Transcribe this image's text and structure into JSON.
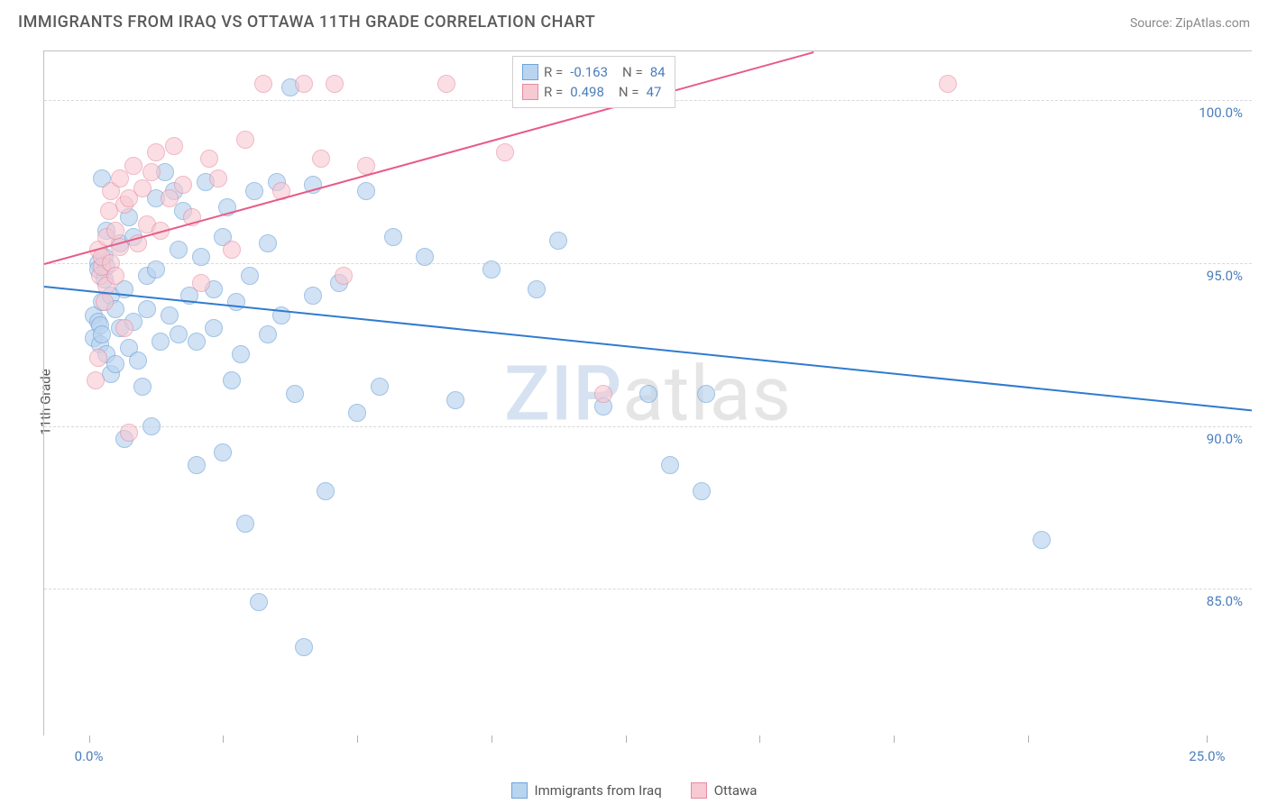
{
  "header": {
    "title": "IMMIGRANTS FROM IRAQ VS OTTAWA 11TH GRADE CORRELATION CHART",
    "source_label": "Source: ZipAtlas.com"
  },
  "watermark": {
    "part1": "ZIP",
    "part2": "atlas"
  },
  "chart": {
    "type": "scatter",
    "background_color": "#ffffff",
    "grid_color": "#d8d8d8",
    "border_color": "#c0c0c0",
    "ylabel": "11th Grade",
    "label_fontsize": 15,
    "tick_color": "#4a7ebb",
    "xlim": [
      -1.0,
      26.0
    ],
    "ylim": [
      80.5,
      101.5
    ],
    "xticks": [
      0.0,
      3.0,
      6.0,
      9.0,
      12.0,
      15.0,
      18.0,
      21.0,
      25.0
    ],
    "xtick_labels": {
      "0": "0.0%",
      "25": "25.0%"
    },
    "yticks": [
      85.0,
      90.0,
      95.0,
      100.0
    ],
    "ytick_labels": [
      "85.0%",
      "90.0%",
      "95.0%",
      "100.0%"
    ],
    "marker_radius": 10,
    "series": [
      {
        "name": "Immigrants from Iraq",
        "fill": "#b9d4ef",
        "stroke": "#6fa3d8",
        "fill_opacity": 0.65,
        "R": "-0.163",
        "N": "84",
        "trend": {
          "x1": -1.0,
          "y1": 94.3,
          "x2": 26.0,
          "y2": 90.5,
          "color": "#2f7bd0",
          "width": 2
        },
        "points": [
          [
            0.1,
            93.4
          ],
          [
            0.1,
            92.7
          ],
          [
            0.2,
            95.0
          ],
          [
            0.2,
            94.8
          ],
          [
            0.2,
            93.2
          ],
          [
            0.25,
            92.5
          ],
          [
            0.25,
            93.1
          ],
          [
            0.3,
            92.8
          ],
          [
            0.3,
            93.8
          ],
          [
            0.3,
            97.6
          ],
          [
            0.35,
            94.5
          ],
          [
            0.35,
            95.2
          ],
          [
            0.4,
            94.9
          ],
          [
            0.4,
            92.2
          ],
          [
            0.4,
            96.0
          ],
          [
            0.5,
            94.0
          ],
          [
            0.5,
            91.6
          ],
          [
            0.6,
            91.9
          ],
          [
            0.6,
            93.6
          ],
          [
            0.7,
            95.6
          ],
          [
            0.7,
            93.0
          ],
          [
            0.8,
            94.2
          ],
          [
            0.8,
            89.6
          ],
          [
            0.9,
            92.4
          ],
          [
            0.9,
            96.4
          ],
          [
            1.0,
            95.8
          ],
          [
            1.0,
            93.2
          ],
          [
            1.1,
            92.0
          ],
          [
            1.2,
            91.2
          ],
          [
            1.3,
            93.6
          ],
          [
            1.3,
            94.6
          ],
          [
            1.4,
            90.0
          ],
          [
            1.5,
            97.0
          ],
          [
            1.5,
            94.8
          ],
          [
            1.6,
            92.6
          ],
          [
            1.7,
            97.8
          ],
          [
            1.8,
            93.4
          ],
          [
            1.9,
            97.2
          ],
          [
            2.0,
            92.8
          ],
          [
            2.0,
            95.4
          ],
          [
            2.1,
            96.6
          ],
          [
            2.25,
            94.0
          ],
          [
            2.4,
            92.6
          ],
          [
            2.4,
            88.8
          ],
          [
            2.5,
            95.2
          ],
          [
            2.6,
            97.5
          ],
          [
            2.8,
            93.0
          ],
          [
            2.8,
            94.2
          ],
          [
            3.0,
            89.2
          ],
          [
            3.0,
            95.8
          ],
          [
            3.1,
            96.7
          ],
          [
            3.2,
            91.4
          ],
          [
            3.3,
            93.8
          ],
          [
            3.4,
            92.2
          ],
          [
            3.5,
            87.0
          ],
          [
            3.6,
            94.6
          ],
          [
            3.7,
            97.2
          ],
          [
            3.8,
            84.6
          ],
          [
            4.0,
            95.6
          ],
          [
            4.0,
            92.8
          ],
          [
            4.2,
            97.5
          ],
          [
            4.3,
            93.4
          ],
          [
            4.5,
            100.4
          ],
          [
            4.6,
            91.0
          ],
          [
            4.8,
            83.2
          ],
          [
            5.0,
            94.0
          ],
          [
            5.0,
            97.4
          ],
          [
            5.3,
            88.0
          ],
          [
            5.6,
            94.4
          ],
          [
            6.0,
            90.4
          ],
          [
            6.2,
            97.2
          ],
          [
            6.5,
            91.2
          ],
          [
            6.8,
            95.8
          ],
          [
            7.5,
            95.2
          ],
          [
            8.2,
            90.8
          ],
          [
            9.0,
            94.8
          ],
          [
            10.0,
            94.2
          ],
          [
            10.5,
            95.7
          ],
          [
            11.5,
            90.6
          ],
          [
            12.5,
            91.0
          ],
          [
            13.0,
            88.8
          ],
          [
            13.7,
            88.0
          ],
          [
            13.8,
            91.0
          ],
          [
            21.3,
            86.5
          ]
        ]
      },
      {
        "name": "Ottawa",
        "fill": "#f7c9d2",
        "stroke": "#e78aa0",
        "fill_opacity": 0.6,
        "R": "0.498",
        "N": "47",
        "trend": {
          "x1": -1.0,
          "y1": 95.0,
          "x2": 16.2,
          "y2": 101.5,
          "color": "#e85b87",
          "width": 2
        },
        "points": [
          [
            0.15,
            91.4
          ],
          [
            0.2,
            92.1
          ],
          [
            0.2,
            95.4
          ],
          [
            0.25,
            94.6
          ],
          [
            0.3,
            94.9
          ],
          [
            0.3,
            95.2
          ],
          [
            0.35,
            93.8
          ],
          [
            0.4,
            94.3
          ],
          [
            0.4,
            95.8
          ],
          [
            0.45,
            96.6
          ],
          [
            0.5,
            95.0
          ],
          [
            0.5,
            97.2
          ],
          [
            0.6,
            94.6
          ],
          [
            0.6,
            96.0
          ],
          [
            0.7,
            95.5
          ],
          [
            0.7,
            97.6
          ],
          [
            0.8,
            93.0
          ],
          [
            0.8,
            96.8
          ],
          [
            0.9,
            97.0
          ],
          [
            0.9,
            89.8
          ],
          [
            1.0,
            98.0
          ],
          [
            1.1,
            95.6
          ],
          [
            1.2,
            97.3
          ],
          [
            1.3,
            96.2
          ],
          [
            1.4,
            97.8
          ],
          [
            1.5,
            98.4
          ],
          [
            1.6,
            96.0
          ],
          [
            1.8,
            97.0
          ],
          [
            1.9,
            98.6
          ],
          [
            2.1,
            97.4
          ],
          [
            2.3,
            96.4
          ],
          [
            2.5,
            94.4
          ],
          [
            2.7,
            98.2
          ],
          [
            2.9,
            97.6
          ],
          [
            3.2,
            95.4
          ],
          [
            3.5,
            98.8
          ],
          [
            3.9,
            100.5
          ],
          [
            4.3,
            97.2
          ],
          [
            4.8,
            100.5
          ],
          [
            5.2,
            98.2
          ],
          [
            5.5,
            100.5
          ],
          [
            5.7,
            94.6
          ],
          [
            6.2,
            98.0
          ],
          [
            8.0,
            100.5
          ],
          [
            9.3,
            98.4
          ],
          [
            11.5,
            91.0
          ],
          [
            19.2,
            100.5
          ]
        ]
      }
    ]
  },
  "legend_bottom": [
    {
      "label": "Immigrants from Iraq",
      "fill": "#b9d4ef",
      "stroke": "#6fa3d8"
    },
    {
      "label": "Ottawa",
      "fill": "#f7c9d2",
      "stroke": "#e78aa0"
    }
  ]
}
